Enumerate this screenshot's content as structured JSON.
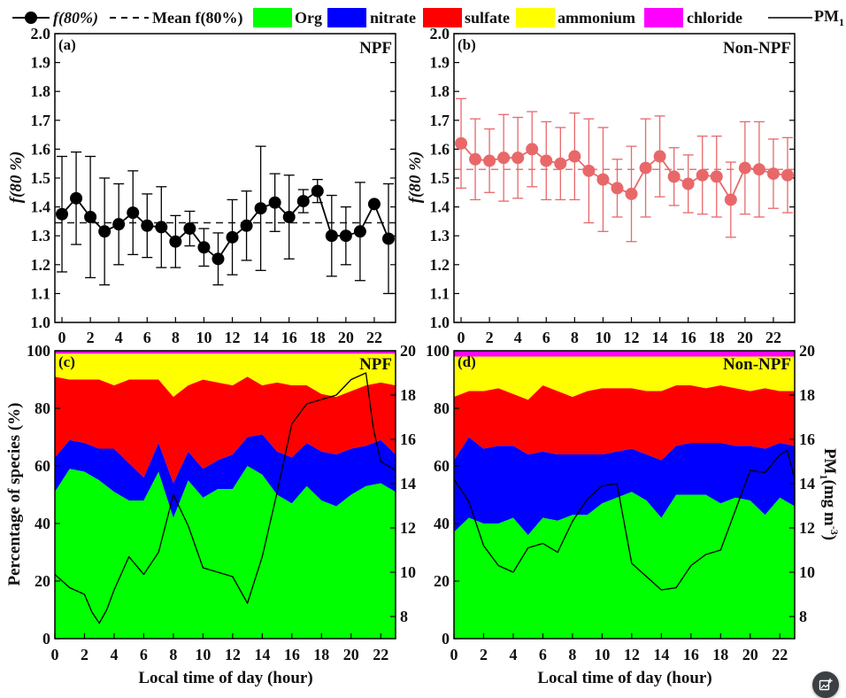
{
  "legend": {
    "f80_label": "f(80%)",
    "mean_label": "Mean f(80%)",
    "org_label": "Org",
    "nitrate_label": "nitrate",
    "sulfate_label": "sulfate",
    "ammonium_label": "ammonium",
    "chloride_label": "chloride",
    "pm1_label": "PM",
    "pm1_sub": "1"
  },
  "colors": {
    "org": "#00ff00",
    "nitrate": "#0000ff",
    "sulfate": "#ff0000",
    "ammonium": "#ffff00",
    "chloride": "#ff00ff",
    "npf_marker": "#000000",
    "nonnpf_marker": "#e8686a",
    "pm1_line": "#000000"
  },
  "panels": {
    "a": {
      "tag": "(a)",
      "type": "NPF"
    },
    "b": {
      "tag": "(b)",
      "type": "Non-NPF"
    },
    "c": {
      "tag": "(c)",
      "type": "NPF"
    },
    "d": {
      "tag": "(d)",
      "type": "Non-NPF"
    }
  },
  "axes": {
    "f_ylabel": "f(80 %)",
    "pct_ylabel": "Percentage of species (%)",
    "pm_ylabel": "PM",
    "pm_ylabel_sub": "1",
    "pm_ylabel_unit": "(mg m",
    "pm_ylabel_exp": "-3",
    "pm_ylabel_close": ")",
    "xlabel": "Local time of day (hour)"
  },
  "chart_data": [
    {
      "panel": "a",
      "type": "scatter",
      "title": "NPF",
      "ylabel": "f(80 %)",
      "x": [
        0,
        1,
        2,
        3,
        4,
        5,
        6,
        7,
        8,
        9,
        10,
        11,
        12,
        13,
        14,
        15,
        16,
        17,
        18,
        19,
        20,
        21,
        22,
        23
      ],
      "y": [
        1.375,
        1.43,
        1.365,
        1.315,
        1.34,
        1.38,
        1.335,
        1.33,
        1.28,
        1.325,
        1.26,
        1.22,
        1.295,
        1.335,
        1.395,
        1.415,
        1.365,
        1.42,
        1.455,
        1.3,
        1.3,
        1.315,
        1.41,
        1.29
      ],
      "err": [
        0.2,
        0.16,
        0.21,
        0.185,
        0.14,
        0.145,
        0.11,
        0.14,
        0.09,
        0.06,
        0.065,
        0.09,
        0.13,
        0.12,
        0.215,
        0.1,
        0.145,
        0.04,
        0.04,
        0.14,
        0.1,
        0.17,
        0.0,
        0.19
      ],
      "mean": 1.345,
      "xlim": [
        -0.5,
        23.5
      ],
      "ylim": [
        1.0,
        2.0
      ],
      "xticks": [
        0,
        2,
        4,
        6,
        8,
        10,
        12,
        14,
        16,
        18,
        20,
        22
      ],
      "yticks": [
        1.0,
        1.1,
        1.2,
        1.3,
        1.4,
        1.5,
        1.6,
        1.7,
        1.8,
        1.9,
        2.0
      ]
    },
    {
      "panel": "b",
      "type": "scatter",
      "title": "Non-NPF",
      "ylabel": "f(80 %)",
      "x": [
        0,
        1,
        2,
        3,
        4,
        5,
        6,
        7,
        8,
        9,
        10,
        11,
        12,
        13,
        14,
        15,
        16,
        17,
        18,
        19,
        20,
        21,
        22,
        23
      ],
      "y": [
        1.62,
        1.565,
        1.56,
        1.57,
        1.57,
        1.6,
        1.56,
        1.55,
        1.575,
        1.525,
        1.495,
        1.465,
        1.445,
        1.535,
        1.575,
        1.505,
        1.48,
        1.51,
        1.505,
        1.425,
        1.535,
        1.53,
        1.515,
        1.51
      ],
      "err": [
        0.155,
        0.14,
        0.11,
        0.15,
        0.14,
        0.13,
        0.135,
        0.125,
        0.15,
        0.18,
        0.18,
        0.1,
        0.165,
        0.17,
        0.14,
        0.1,
        0.1,
        0.135,
        0.14,
        0.13,
        0.16,
        0.165,
        0.12,
        0.13
      ],
      "mean": 1.53,
      "xlim": [
        -0.5,
        23.5
      ],
      "ylim": [
        1.0,
        2.0
      ],
      "xticks": [
        0,
        2,
        4,
        6,
        8,
        10,
        12,
        14,
        16,
        18,
        20,
        22
      ],
      "yticks": [
        1.0,
        1.1,
        1.2,
        1.3,
        1.4,
        1.5,
        1.6,
        1.7,
        1.8,
        1.9,
        2.0
      ]
    },
    {
      "panel": "c",
      "type": "area",
      "title": "NPF",
      "ylabel": "Percentage of species (%)",
      "xlabel": "Local time of day (hour)",
      "x": [
        0,
        1,
        2,
        3,
        4,
        5,
        6,
        7,
        8,
        9,
        10,
        11,
        12,
        13,
        14,
        15,
        16,
        17,
        18,
        19,
        20,
        21,
        22,
        23
      ],
      "series": [
        {
          "name": "Org",
          "values": [
            51,
            59,
            58,
            55,
            51,
            48,
            48,
            58,
            42,
            55,
            49,
            52,
            52,
            60,
            57,
            50,
            47,
            53,
            48,
            46,
            50,
            53,
            54,
            51
          ]
        },
        {
          "name": "nitrate",
          "values": [
            12,
            10,
            10,
            11,
            15,
            13,
            8,
            10,
            12,
            10,
            10,
            10,
            12,
            10,
            14,
            15,
            16,
            15,
            17,
            18,
            16,
            14,
            15,
            13
          ]
        },
        {
          "name": "sulfate",
          "values": [
            28,
            21,
            22,
            24,
            22,
            29,
            34,
            22,
            30,
            23,
            31,
            27,
            24,
            21,
            17,
            24,
            25,
            20,
            20,
            20,
            20,
            21,
            20,
            24
          ]
        },
        {
          "name": "ammonium",
          "values": [
            8,
            9,
            9,
            9,
            11,
            9,
            9,
            9,
            15,
            11,
            9,
            10,
            11,
            8,
            11,
            10,
            11,
            11,
            14,
            15,
            13,
            11,
            10,
            11
          ]
        },
        {
          "name": "chloride",
          "values": [
            1,
            1,
            1,
            1,
            1,
            1,
            1,
            1,
            1,
            1,
            1,
            1,
            1,
            1,
            1,
            1,
            1,
            1,
            1,
            1,
            1,
            1,
            1,
            1
          ]
        }
      ],
      "pm1": {
        "name": "PM1",
        "x": [
          0,
          1,
          2,
          2.5,
          3,
          3.5,
          4,
          5,
          6,
          7,
          8,
          9,
          10,
          11,
          12,
          13,
          14,
          15,
          16,
          17,
          18,
          19,
          20,
          21,
          21.5,
          22,
          23
        ],
        "values": [
          9.9,
          9.3,
          9.0,
          8.2,
          7.7,
          8.3,
          9.2,
          10.7,
          9.9,
          10.9,
          13.5,
          12.1,
          10.2,
          10.0,
          9.8,
          8.6,
          10.7,
          13.6,
          16.7,
          17.6,
          17.8,
          18.0,
          18.7,
          19.0,
          16.5,
          15.0,
          14.6
        ]
      },
      "xlim": [
        0,
        23
      ],
      "ylim": [
        0,
        100
      ],
      "pm_ylim": [
        7,
        20
      ],
      "xticks": [
        0,
        2,
        4,
        6,
        8,
        10,
        12,
        14,
        16,
        18,
        20,
        22
      ],
      "yticks": [
        0,
        20,
        40,
        60,
        80,
        100
      ],
      "pm_yticks": [
        8,
        10,
        12,
        14,
        16,
        18,
        20
      ]
    },
    {
      "panel": "d",
      "type": "area",
      "title": "Non-NPF",
      "ylabel": "Percentage of species (%)",
      "xlabel": "Local time of day (hour)",
      "x": [
        0,
        1,
        2,
        3,
        4,
        5,
        6,
        7,
        8,
        9,
        10,
        11,
        12,
        13,
        14,
        15,
        16,
        17,
        18,
        19,
        20,
        21,
        22,
        23
      ],
      "series": [
        {
          "name": "Org",
          "values": [
            37,
            42,
            40,
            40,
            42,
            36,
            42,
            41,
            43,
            43,
            47,
            49,
            51,
            48,
            42,
            50,
            50,
            50,
            47,
            49,
            48,
            43,
            49,
            46
          ]
        },
        {
          "name": "nitrate",
          "values": [
            25,
            28,
            26,
            27,
            25,
            28,
            23,
            23,
            21,
            21,
            17,
            16,
            15,
            16,
            20,
            17,
            18,
            18,
            21,
            18,
            19,
            23,
            19,
            21
          ]
        },
        {
          "name": "sulfate",
          "values": [
            22,
            16,
            20,
            20,
            18,
            19,
            23,
            22,
            20,
            22,
            23,
            22,
            21,
            22,
            24,
            21,
            20,
            19,
            20,
            20,
            19,
            21,
            18,
            19
          ]
        },
        {
          "name": "ammonium",
          "values": [
            14,
            12,
            12,
            11,
            13,
            15,
            10,
            12,
            14,
            12,
            11,
            11,
            11,
            12,
            12,
            10,
            10,
            11,
            10,
            11,
            12,
            11,
            12,
            12
          ]
        },
        {
          "name": "chloride",
          "values": [
            2,
            2,
            2,
            2,
            2,
            2,
            2,
            2,
            2,
            2,
            2,
            2,
            2,
            2,
            2,
            2,
            2,
            2,
            2,
            2,
            2,
            2,
            2,
            2
          ]
        }
      ],
      "pm1": {
        "name": "PM1",
        "x": [
          0,
          1,
          2,
          3,
          4,
          5,
          6,
          7,
          8,
          9,
          10,
          11,
          12,
          13,
          14,
          15,
          16,
          17,
          18,
          19,
          20,
          21,
          22,
          22.5,
          23
        ],
        "values": [
          14.2,
          13.2,
          11.2,
          10.3,
          10.0,
          11.1,
          11.3,
          10.9,
          12.3,
          13.3,
          13.9,
          14.0,
          10.4,
          9.8,
          9.2,
          9.3,
          10.3,
          10.8,
          11.0,
          12.8,
          14.6,
          14.5,
          15.3,
          15.5,
          14.2
        ]
      },
      "xlim": [
        0,
        23
      ],
      "ylim": [
        0,
        100
      ],
      "pm_ylim": [
        7,
        20
      ],
      "xticks": [
        0,
        2,
        4,
        6,
        8,
        10,
        12,
        14,
        16,
        18,
        20,
        22
      ],
      "yticks": [
        0,
        20,
        40,
        60,
        80,
        100
      ],
      "pm_yticks": [
        8,
        10,
        12,
        14,
        16,
        18,
        20
      ]
    }
  ],
  "fab": {
    "icon": "add-image-icon"
  }
}
